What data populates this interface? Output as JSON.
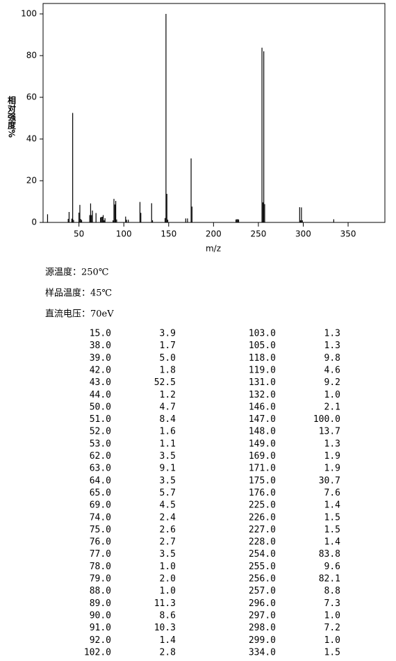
{
  "chart_data": {
    "type": "bar",
    "x_label": "m/z",
    "y_label": "相对强度%",
    "color": "#000000",
    "x": [
      15,
      38,
      39,
      42,
      43,
      44,
      50,
      51,
      52,
      53,
      62,
      63,
      64,
      65,
      69,
      74,
      75,
      76,
      77,
      78,
      79,
      88,
      89,
      90,
      91,
      92,
      102,
      103,
      105,
      118,
      119,
      131,
      132,
      146,
      147,
      148,
      149,
      169,
      171,
      175,
      176,
      225,
      226,
      227,
      228,
      254,
      255,
      256,
      257,
      296,
      297,
      298,
      299,
      334
    ],
    "values": [
      3.9,
      1.7,
      5.0,
      1.8,
      52.5,
      1.2,
      4.7,
      8.4,
      1.6,
      1.1,
      3.5,
      9.1,
      3.5,
      5.7,
      4.5,
      2.4,
      2.6,
      2.7,
      3.5,
      1.0,
      2.0,
      1.0,
      11.3,
      8.6,
      10.3,
      1.4,
      2.8,
      1.3,
      1.3,
      9.8,
      4.6,
      9.2,
      1.0,
      2.1,
      100,
      13.7,
      1.3,
      1.9,
      1.9,
      30.7,
      7.6,
      1.4,
      1.5,
      1.5,
      1.4,
      83.8,
      9.6,
      82.1,
      8.8,
      7.3,
      1.0,
      7.2,
      1.0,
      1.5
    ],
    "xlim": [
      10,
      391
    ],
    "xticks": [
      50,
      100,
      150,
      200,
      250,
      300,
      350
    ],
    "ylim": [
      0,
      105
    ],
    "yticks": [
      0,
      20,
      40,
      60,
      80,
      100
    ]
  },
  "info": [
    "源温度：250℃",
    "样品温度：45℃",
    "直流电压：70eV"
  ],
  "table": {
    "rows": [
      [
        "15.0",
        "3.9",
        "103.0",
        "1.3"
      ],
      [
        "38.0",
        "1.7",
        "105.0",
        "1.3"
      ],
      [
        "39.0",
        "5.0",
        "118.0",
        "9.8"
      ],
      [
        "42.0",
        "1.8",
        "119.0",
        "4.6"
      ],
      [
        "43.0",
        "52.5",
        "131.0",
        "9.2"
      ],
      [
        "44.0",
        "1.2",
        "132.0",
        "1.0"
      ],
      [
        "50.0",
        "4.7",
        "146.0",
        "2.1"
      ],
      [
        "51.0",
        "8.4",
        "147.0",
        "100.0"
      ],
      [
        "52.0",
        "1.6",
        "148.0",
        "13.7"
      ],
      [
        "53.0",
        "1.1",
        "149.0",
        "1.3"
      ],
      [
        "62.0",
        "3.5",
        "169.0",
        "1.9"
      ],
      [
        "63.0",
        "9.1",
        "171.0",
        "1.9"
      ],
      [
        "64.0",
        "3.5",
        "175.0",
        "30.7"
      ],
      [
        "65.0",
        "5.7",
        "176.0",
        "7.6"
      ],
      [
        "69.0",
        "4.5",
        "225.0",
        "1.4"
      ],
      [
        "74.0",
        "2.4",
        "226.0",
        "1.5"
      ],
      [
        "75.0",
        "2.6",
        "227.0",
        "1.5"
      ],
      [
        "76.0",
        "2.7",
        "228.0",
        "1.4"
      ],
      [
        "77.0",
        "3.5",
        "254.0",
        "83.8"
      ],
      [
        "78.0",
        "1.0",
        "255.0",
        "9.6"
      ],
      [
        "79.0",
        "2.0",
        "256.0",
        "82.1"
      ],
      [
        "88.0",
        "1.0",
        "257.0",
        "8.8"
      ],
      [
        "89.0",
        "11.3",
        "296.0",
        "7.3"
      ],
      [
        "90.0",
        "8.6",
        "297.0",
        "1.0"
      ],
      [
        "91.0",
        "10.3",
        "298.0",
        "7.2"
      ],
      [
        "92.0",
        "1.4",
        "299.0",
        "1.0"
      ],
      [
        "102.0",
        "2.8",
        "334.0",
        "1.5"
      ]
    ]
  }
}
